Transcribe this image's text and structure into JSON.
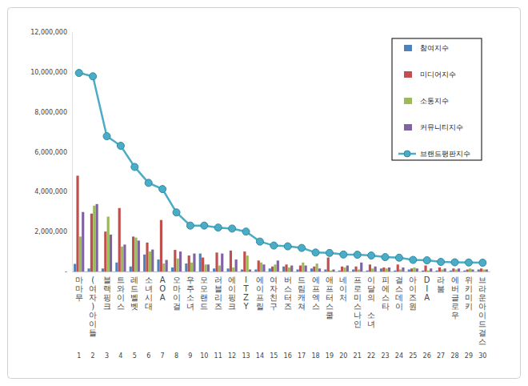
{
  "chart_data": {
    "type": "bar",
    "categories": [
      "마마무",
      "(여자)아이들",
      "블랙핑크",
      "트와이스",
      "레드벨벳",
      "소녀시대",
      "AOA",
      "오마이걸",
      "우주소녀",
      "모모랜드",
      "러블리즈",
      "에이핑크",
      "ITZY",
      "에이프릴",
      "여자친구",
      "버스터즈",
      "드림캐쳐",
      "에프엑스",
      "애프터스쿨",
      "네이처",
      "프로미스나인",
      "이달의 소녀",
      "피에스타",
      "걸스데이",
      "아이즈원",
      "DIA",
      "라붐",
      "에버글로우",
      "위키미키",
      "브라운아이드걸스"
    ],
    "ranks": [
      1,
      2,
      3,
      4,
      5,
      6,
      7,
      8,
      9,
      10,
      11,
      12,
      13,
      14,
      15,
      16,
      17,
      18,
      19,
      20,
      21,
      22,
      23,
      24,
      25,
      26,
      27,
      28,
      29,
      30
    ],
    "series": [
      {
        "name": "참여지수",
        "type": "bar",
        "color": "#4f81bd",
        "values": [
          380000,
          150000,
          150000,
          450000,
          250000,
          850000,
          600000,
          200000,
          400000,
          900000,
          150000,
          150000,
          100000,
          100000,
          150000,
          250000,
          100000,
          150000,
          100000,
          50000,
          100000,
          50000,
          150000,
          50000,
          100000,
          50000,
          50000,
          50000,
          50000,
          100000
        ]
      },
      {
        "name": "미디어지수",
        "type": "bar",
        "color": "#c0504d",
        "values": [
          4800000,
          2900000,
          2000000,
          3180000,
          1750000,
          1450000,
          2580000,
          1080000,
          800000,
          700000,
          950000,
          1050000,
          1000000,
          550000,
          250000,
          350000,
          300000,
          250000,
          700000,
          250000,
          250000,
          350000,
          200000,
          350000,
          150000,
          300000,
          200000,
          150000,
          100000,
          150000
        ]
      },
      {
        "name": "소통지수",
        "type": "bar",
        "color": "#9bbb59",
        "values": [
          1750000,
          3300000,
          2750000,
          1250000,
          1700000,
          1000000,
          400000,
          650000,
          450000,
          350000,
          300000,
          200000,
          800000,
          450000,
          350000,
          200000,
          450000,
          400000,
          50000,
          200000,
          100000,
          150000,
          150000,
          100000,
          200000,
          50000,
          100000,
          100000,
          150000,
          100000
        ]
      },
      {
        "name": "커뮤니티지수",
        "type": "bar",
        "color": "#8064a2",
        "values": [
          2980000,
          3380000,
          1850000,
          1350000,
          1550000,
          1100000,
          580000,
          1000000,
          900000,
          350000,
          900000,
          600000,
          100000,
          350000,
          550000,
          300000,
          300000,
          150000,
          100000,
          300000,
          450000,
          250000,
          200000,
          200000,
          150000,
          150000,
          150000,
          150000,
          100000,
          100000
        ]
      },
      {
        "name": "브랜드평판지수",
        "type": "line",
        "color": "#4bacc6",
        "marker": "circle",
        "values": [
          9950000,
          9780000,
          6780000,
          6300000,
          5240000,
          4440000,
          4130000,
          2960000,
          2300000,
          2300000,
          2200000,
          2150000,
          2000000,
          1500000,
          1300000,
          1260000,
          1180000,
          950000,
          930000,
          850000,
          840000,
          800000,
          720000,
          690000,
          580000,
          560000,
          480000,
          460000,
          450000,
          440000
        ]
      }
    ],
    "ylim": [
      0,
      12000000
    ],
    "yticks": [
      {
        "value": 0,
        "label": "-"
      },
      {
        "value": 2000000,
        "label": "2,000,000"
      },
      {
        "value": 4000000,
        "label": "4,000,000"
      },
      {
        "value": 6000000,
        "label": "6,000,000"
      },
      {
        "value": 8000000,
        "label": "8,000,000"
      },
      {
        "value": 10000000,
        "label": "10,000,000"
      },
      {
        "value": 12000000,
        "label": "12,000,000"
      }
    ],
    "grid": false,
    "legend": "top-right"
  }
}
